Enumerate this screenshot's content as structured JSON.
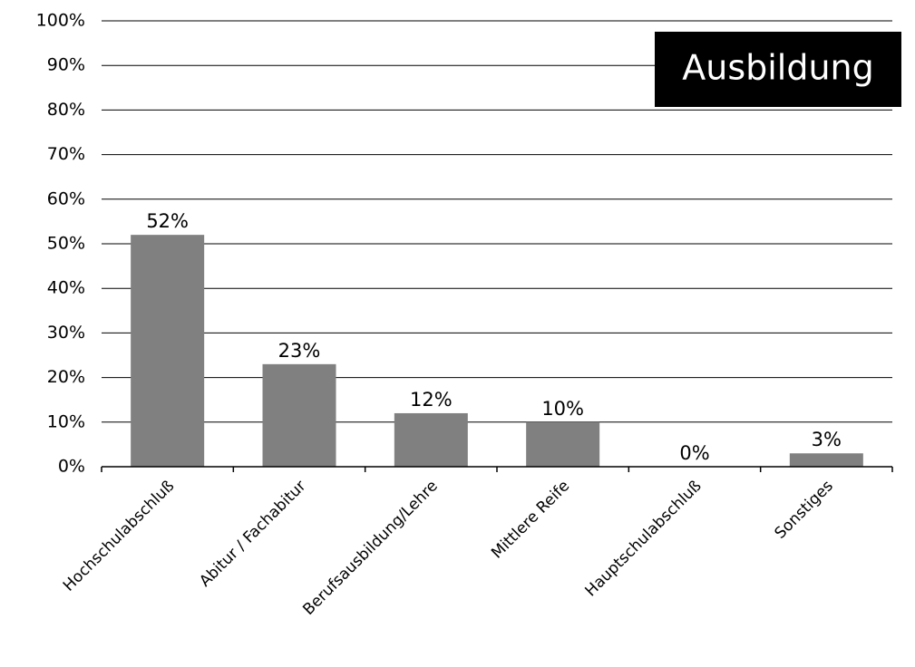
{
  "chart_data": {
    "type": "bar",
    "title": "Ausbildung",
    "categories": [
      "Hochschulabschluß",
      "Abitur / Fachabitur",
      "Berufsausbildung/Lehre",
      "Mittlere Reife",
      "Hauptschulabschluß",
      "Sonstiges"
    ],
    "values": [
      52,
      23,
      12,
      10,
      0,
      3
    ],
    "value_labels": [
      "52%",
      "23%",
      "12%",
      "10%",
      "0%",
      "3%"
    ],
    "y_ticks": [
      "0%",
      "10%",
      "20%",
      "30%",
      "40%",
      "50%",
      "60%",
      "70%",
      "80%",
      "90%",
      "100%"
    ],
    "ylim": [
      0,
      100
    ],
    "grid": true,
    "bar_color": "#808080",
    "title_background": "#000000",
    "title_color": "#ffffff",
    "title_position": "top-right"
  }
}
